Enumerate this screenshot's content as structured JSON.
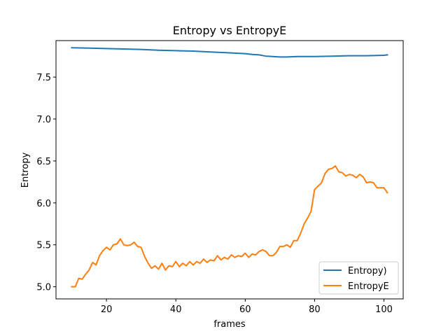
{
  "chart_data": {
    "type": "line",
    "title": "Entropy vs EntropyE",
    "xlabel": "frames",
    "ylabel": "Entropy",
    "xlim": [
      5.45,
      105.55
    ],
    "ylim": [
      4.855,
      7.935
    ],
    "xticks": [
      20,
      40,
      60,
      80,
      100
    ],
    "yticks": [
      5.0,
      5.5,
      6.0,
      6.5,
      7.0,
      7.5
    ],
    "ytick_labels": [
      "5.0",
      "5.5",
      "6.0",
      "6.5",
      "7.0",
      "7.5"
    ],
    "grid": false,
    "legend_position": "lower-right",
    "series": [
      {
        "name": "Entropy)",
        "color": "#1f77b4",
        "x": [
          10,
          15,
          20,
          25,
          30,
          35,
          40,
          45,
          50,
          55,
          60,
          62,
          64,
          66,
          70,
          72,
          75,
          80,
          85,
          90,
          95,
          100,
          101
        ],
        "y": [
          7.85,
          7.845,
          7.84,
          7.835,
          7.83,
          7.82,
          7.815,
          7.81,
          7.8,
          7.79,
          7.78,
          7.77,
          7.765,
          7.75,
          7.74,
          7.74,
          7.745,
          7.745,
          7.75,
          7.755,
          7.755,
          7.76,
          7.765
        ]
      },
      {
        "name": "EntropyE",
        "color": "#ff7f0e",
        "x": [
          10,
          11,
          12,
          13,
          14,
          15,
          16,
          17,
          18,
          19,
          20,
          21,
          22,
          23,
          24,
          25,
          26,
          27,
          28,
          29,
          30,
          31,
          32,
          33,
          34,
          35,
          36,
          37,
          38,
          39,
          40,
          41,
          42,
          43,
          44,
          45,
          46,
          47,
          48,
          49,
          50,
          51,
          52,
          53,
          54,
          55,
          56,
          57,
          58,
          59,
          60,
          61,
          62,
          63,
          64,
          65,
          66,
          67,
          68,
          69,
          70,
          71,
          72,
          73,
          74,
          75,
          76,
          77,
          78,
          79,
          80,
          81,
          82,
          83,
          84,
          85,
          86,
          87,
          88,
          89,
          90,
          91,
          92,
          93,
          94,
          95,
          96,
          97,
          98,
          99,
          100,
          101
        ],
        "y": [
          5.0,
          5.0,
          5.1,
          5.09,
          5.15,
          5.2,
          5.29,
          5.26,
          5.37,
          5.43,
          5.47,
          5.44,
          5.5,
          5.51,
          5.57,
          5.5,
          5.49,
          5.5,
          5.53,
          5.48,
          5.47,
          5.36,
          5.28,
          5.22,
          5.25,
          5.21,
          5.28,
          5.2,
          5.25,
          5.24,
          5.3,
          5.24,
          5.28,
          5.25,
          5.3,
          5.26,
          5.3,
          5.28,
          5.33,
          5.29,
          5.32,
          5.31,
          5.37,
          5.32,
          5.35,
          5.33,
          5.38,
          5.35,
          5.37,
          5.36,
          5.4,
          5.35,
          5.39,
          5.38,
          5.42,
          5.44,
          5.42,
          5.37,
          5.37,
          5.41,
          5.48,
          5.48,
          5.5,
          5.47,
          5.55,
          5.55,
          5.64,
          5.75,
          5.82,
          5.9,
          6.16,
          6.2,
          6.24,
          6.35,
          6.4,
          6.41,
          6.44,
          6.37,
          6.36,
          6.32,
          6.34,
          6.33,
          6.3,
          6.34,
          6.31,
          6.24,
          6.25,
          6.24,
          6.18,
          6.18,
          6.18,
          6.12
        ]
      }
    ]
  }
}
